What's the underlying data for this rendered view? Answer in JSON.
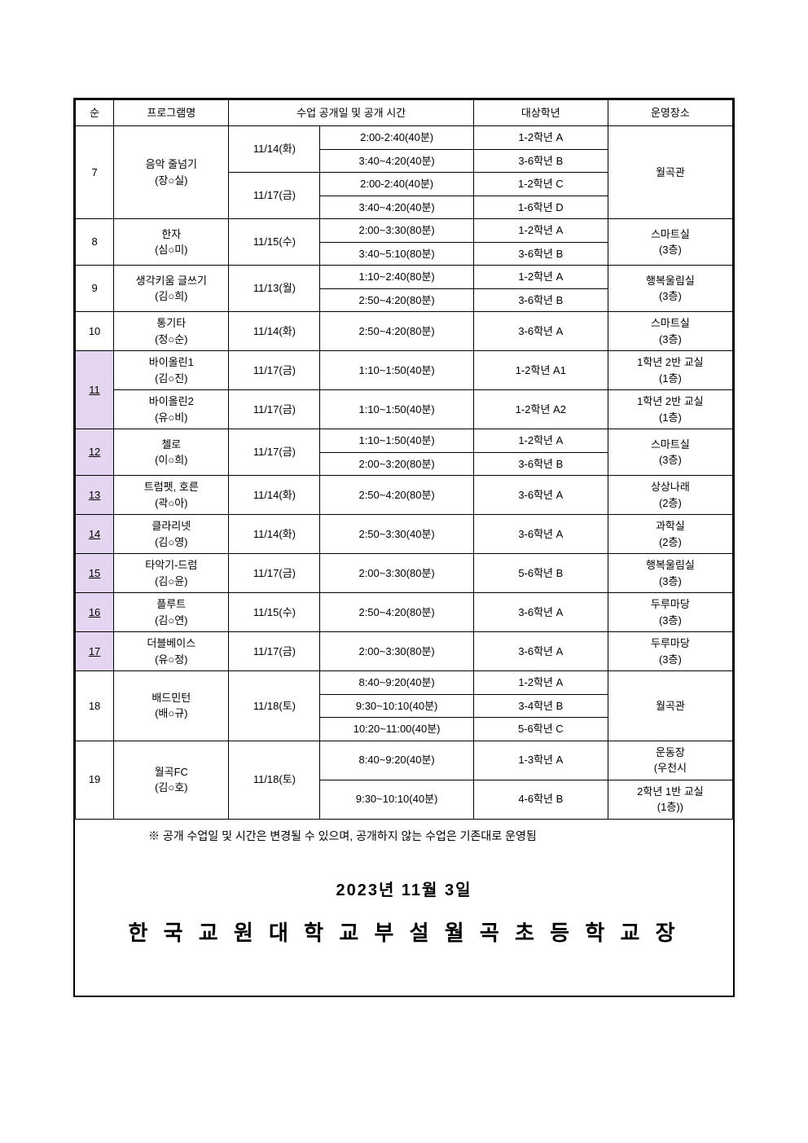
{
  "headers": {
    "num": "순",
    "program": "프로그램명",
    "schedule": "수업 공개일 및 공개 시간",
    "grade": "대상학년",
    "location": "운영장소"
  },
  "rows": [
    {
      "num": "7",
      "highlight": false,
      "underline": false,
      "program": [
        "음악 줄넘기",
        "(장○실)"
      ],
      "sessions": [
        {
          "date": "11/14(화)",
          "dateSpan": 2,
          "time": "2:00-2:40(40분)",
          "grade": "1-2학년 A"
        },
        {
          "time": "3:40~4:20(40분)",
          "grade": "3-6학년 B"
        },
        {
          "date": "11/17(금)",
          "dateSpan": 2,
          "time": "2:00-2:40(40분)",
          "grade": "1-2학년 C"
        },
        {
          "time": "3:40~4:20(40분)",
          "grade": "1-6학년 D"
        }
      ],
      "location": [
        "월곡관"
      ],
      "locSpan": 4
    },
    {
      "num": "8",
      "highlight": false,
      "underline": false,
      "program": [
        "한자",
        "(심○미)"
      ],
      "sessions": [
        {
          "date": "11/15(수)",
          "dateSpan": 2,
          "time": "2:00~3:30(80분)",
          "grade": "1-2학년 A"
        },
        {
          "time": "3:40~5:10(80분)",
          "grade": "3-6학년 B"
        }
      ],
      "location": [
        "스마트실",
        "(3층)"
      ],
      "locSpan": 2
    },
    {
      "num": "9",
      "highlight": false,
      "underline": false,
      "program": [
        "생각키움 글쓰기",
        "(김○희)"
      ],
      "sessions": [
        {
          "date": "11/13(월)",
          "dateSpan": 2,
          "time": "1:10~2:40(80분)",
          "grade": "1-2학년 A"
        },
        {
          "time": "2:50~4:20(80분)",
          "grade": "3-6학년 B"
        }
      ],
      "location": [
        "행복울림실",
        "(3층)"
      ],
      "locSpan": 2
    },
    {
      "num": "10",
      "highlight": false,
      "underline": false,
      "program": [
        "통기타",
        "(정○순)"
      ],
      "sessions": [
        {
          "date": "11/14(화)",
          "dateSpan": 1,
          "time": "2:50~4:20(80분)",
          "grade": "3-6학년 A"
        }
      ],
      "location": [
        "스마트실",
        "(3층)"
      ],
      "locSpan": 1
    },
    {
      "num": "11",
      "highlight": true,
      "underline": true,
      "numSpan": 2,
      "subrows": [
        {
          "program": [
            "바이올린1",
            "(김○진)"
          ],
          "date": "11/17(금)",
          "time": "1:10~1:50(40분)",
          "grade": "1-2학년 A1",
          "location": [
            "1학년 2반 교실",
            "(1층)"
          ]
        },
        {
          "program": [
            "바이올린2",
            "(유○비)"
          ],
          "date": "11/17(금)",
          "time": "1:10~1:50(40분)",
          "grade": "1-2학년 A2",
          "location": [
            "1학년 2반 교실",
            "(1층)"
          ]
        }
      ]
    },
    {
      "num": "12",
      "highlight": true,
      "underline": true,
      "program": [
        "첼로",
        "(이○희)"
      ],
      "sessions": [
        {
          "date": "11/17(금)",
          "dateSpan": 2,
          "time": "1:10~1:50(40분)",
          "grade": "1-2학년 A"
        },
        {
          "time": "2:00~3:20(80분)",
          "grade": "3-6학년 B"
        }
      ],
      "location": [
        "스마트실",
        "(3층)"
      ],
      "locSpan": 2
    },
    {
      "num": "13",
      "highlight": true,
      "underline": true,
      "program": [
        "트럼펫,  호른",
        "(곽○아)"
      ],
      "sessions": [
        {
          "date": "11/14(화)",
          "dateSpan": 1,
          "time": "2:50~4:20(80분)",
          "grade": "3-6학년 A"
        }
      ],
      "location": [
        "상상나래",
        "(2층)"
      ],
      "locSpan": 1
    },
    {
      "num": "14",
      "highlight": true,
      "underline": true,
      "program": [
        "클라리넷",
        "(김○영)"
      ],
      "sessions": [
        {
          "date": "11/14(화)",
          "dateSpan": 1,
          "time": "2:50~3:30(40분)",
          "grade": "3-6학년 A"
        }
      ],
      "location": [
        "과학실",
        "(2층)"
      ],
      "locSpan": 1
    },
    {
      "num": "15",
      "highlight": true,
      "underline": true,
      "program": [
        "타악기-드럼",
        "(김○윤)"
      ],
      "sessions": [
        {
          "date": "11/17(금)",
          "dateSpan": 1,
          "time": "2:00~3:30(80분)",
          "grade": "5-6학년 B"
        }
      ],
      "location": [
        "행복울림실",
        "(3층)"
      ],
      "locSpan": 1
    },
    {
      "num": "16",
      "highlight": true,
      "underline": true,
      "program": [
        "플루트",
        "(김○연)"
      ],
      "sessions": [
        {
          "date": "11/15(수)",
          "dateSpan": 1,
          "time": "2:50~4:20(80분)",
          "grade": "3-6학년 A"
        }
      ],
      "location": [
        "두루마당",
        "(3층)"
      ],
      "locSpan": 1
    },
    {
      "num": "17",
      "highlight": true,
      "underline": true,
      "program": [
        "더블베이스",
        "(유○정)"
      ],
      "sessions": [
        {
          "date": "11/17(금)",
          "dateSpan": 1,
          "time": "2:00~3:30(80분)",
          "grade": "3-6학년 A"
        }
      ],
      "location": [
        "두루마당",
        "(3층)"
      ],
      "locSpan": 1
    },
    {
      "num": "18",
      "highlight": false,
      "underline": false,
      "program": [
        "배드민턴",
        "(배○규)"
      ],
      "sessions": [
        {
          "date": "11/18(토)",
          "dateSpan": 3,
          "time": "8:40~9:20(40분)",
          "grade": "1-2학년 A"
        },
        {
          "time": "9:30~10:10(40분)",
          "grade": "3-4학년 B"
        },
        {
          "time": "10:20~11:00(40분)",
          "grade": "5-6학년 C"
        }
      ],
      "location": [
        "월곡관"
      ],
      "locSpan": 3
    },
    {
      "num": "19",
      "highlight": false,
      "underline": false,
      "program": [
        "월곡FC",
        "(김○호)"
      ],
      "sessions": [
        {
          "date": "11/18(토)",
          "dateSpan": 2,
          "time": "8:40~9:20(40분)",
          "grade": "1-3학년 A"
        },
        {
          "time": "9:30~10:10(40분)",
          "grade": "4-6학년 B"
        }
      ],
      "locCells": [
        {
          "lines": [
            "운동장",
            "(우천시"
          ]
        },
        {
          "lines": [
            "2학년 1반 교실",
            "(1층))"
          ]
        }
      ]
    }
  ],
  "note": "※ 공개 수업일 및 시간은 변경될 수 있으며, 공개하지 않는 수업은 기존대로 운영됨",
  "dateLine": "2023년  11월  3일",
  "principal": "한 국 교 원 대 학 교 부 설 월 곡 초 등 학 교 장"
}
